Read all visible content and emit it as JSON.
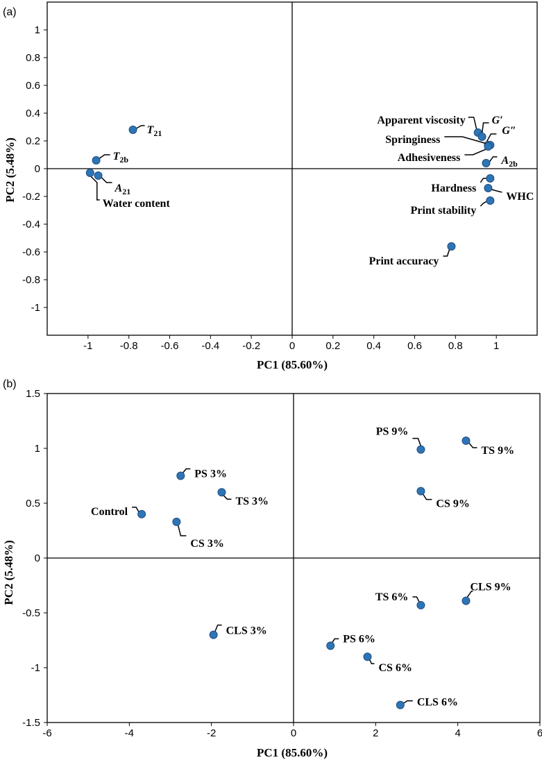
{
  "chart_data": [
    {
      "panel": "(a)",
      "type": "scatter",
      "xlabel": "PC1 (85.60%)",
      "ylabel": "PC2 (5.48%)",
      "xlim": [
        -1.2,
        1.2
      ],
      "ylim": [
        -1.2,
        1.2
      ],
      "xticks": [
        "-1",
        "-0.8",
        "-0.6",
        "-0.4",
        "-0.2",
        "0",
        "0.2",
        "0.4",
        "0.6",
        "0.8",
        "1"
      ],
      "xtick_values": [
        -1,
        -0.8,
        -0.6,
        -0.4,
        -0.2,
        0,
        0.2,
        0.4,
        0.6,
        0.8,
        1
      ],
      "yticks": [
        "1",
        "0.8",
        "0.6",
        "0.4",
        "0.2",
        "0",
        "-0.2",
        "-0.4",
        "-0.6",
        "-0.8",
        "-1"
      ],
      "ytick_values": [
        1,
        0.8,
        0.6,
        0.4,
        0.2,
        0,
        -0.2,
        -0.4,
        -0.6,
        -0.8,
        -1
      ],
      "point_color": "#2e75b6",
      "points": [
        {
          "label": "T",
          "sub": "21",
          "italic": true,
          "x": -0.78,
          "y": 0.28
        },
        {
          "label": "T",
          "sub": "2b",
          "italic": true,
          "x": -0.96,
          "y": 0.06
        },
        {
          "label": "A",
          "sub": "21",
          "italic": true,
          "x": -0.95,
          "y": -0.05
        },
        {
          "label": "Water content",
          "x": -0.99,
          "y": -0.03
        },
        {
          "label": "Apparent viscosity",
          "x": 0.91,
          "y": 0.26
        },
        {
          "label": "G′",
          "italic": true,
          "x": 0.93,
          "y": 0.23
        },
        {
          "label": "G″",
          "italic": true,
          "x": 0.96,
          "y": 0.17
        },
        {
          "label": "Springiness",
          "x": 0.97,
          "y": 0.17
        },
        {
          "label": "Adhesiveness",
          "x": 0.96,
          "y": 0.16
        },
        {
          "label": "A",
          "sub": "2b",
          "italic": true,
          "x": 0.95,
          "y": 0.04
        },
        {
          "label": "Hardness",
          "x": 0.97,
          "y": -0.07
        },
        {
          "label": "WHC",
          "x": 0.96,
          "y": -0.14
        },
        {
          "label": "Print stability",
          "x": 0.97,
          "y": -0.23
        },
        {
          "label": "Print accuracy",
          "x": 0.78,
          "y": -0.56
        }
      ]
    },
    {
      "panel": "(b)",
      "type": "scatter",
      "xlabel": "PC1 (85.60%)",
      "ylabel": "PC2 (5.48%)",
      "xlim": [
        -6,
        6
      ],
      "ylim": [
        -1.5,
        1.5
      ],
      "xticks": [
        "-6",
        "-4",
        "-2",
        "0",
        "2",
        "4",
        "6"
      ],
      "xtick_values": [
        -6,
        -4,
        -2,
        0,
        2,
        4,
        6
      ],
      "yticks": [
        "1.5",
        "1",
        "0.5",
        "0",
        "-0.5",
        "-1",
        "-1.5"
      ],
      "ytick_values": [
        1.5,
        1,
        0.5,
        0,
        -0.5,
        -1,
        -1.5
      ],
      "point_color": "#2e75b6",
      "points": [
        {
          "label": "PS 3%",
          "x": -2.75,
          "y": 0.75
        },
        {
          "label": "TS 3%",
          "x": -1.75,
          "y": 0.6
        },
        {
          "label": "Control",
          "x": -3.7,
          "y": 0.4
        },
        {
          "label": "CS 3%",
          "x": -2.85,
          "y": 0.33
        },
        {
          "label": "CLS 3%",
          "x": -1.95,
          "y": -0.7
        },
        {
          "label": "PS 9%",
          "x": 3.1,
          "y": 0.99
        },
        {
          "label": "TS 9%",
          "x": 4.2,
          "y": 1.07
        },
        {
          "label": "CS 9%",
          "x": 3.1,
          "y": 0.61
        },
        {
          "label": "TS 6%",
          "x": 3.1,
          "y": -0.43
        },
        {
          "label": "CLS 9%",
          "x": 4.2,
          "y": -0.39
        },
        {
          "label": "PS 6%",
          "x": 0.9,
          "y": -0.8
        },
        {
          "label": "CS 6%",
          "x": 1.8,
          "y": -0.9
        },
        {
          "label": "CLS 6%",
          "x": 2.6,
          "y": -1.34
        }
      ]
    }
  ]
}
